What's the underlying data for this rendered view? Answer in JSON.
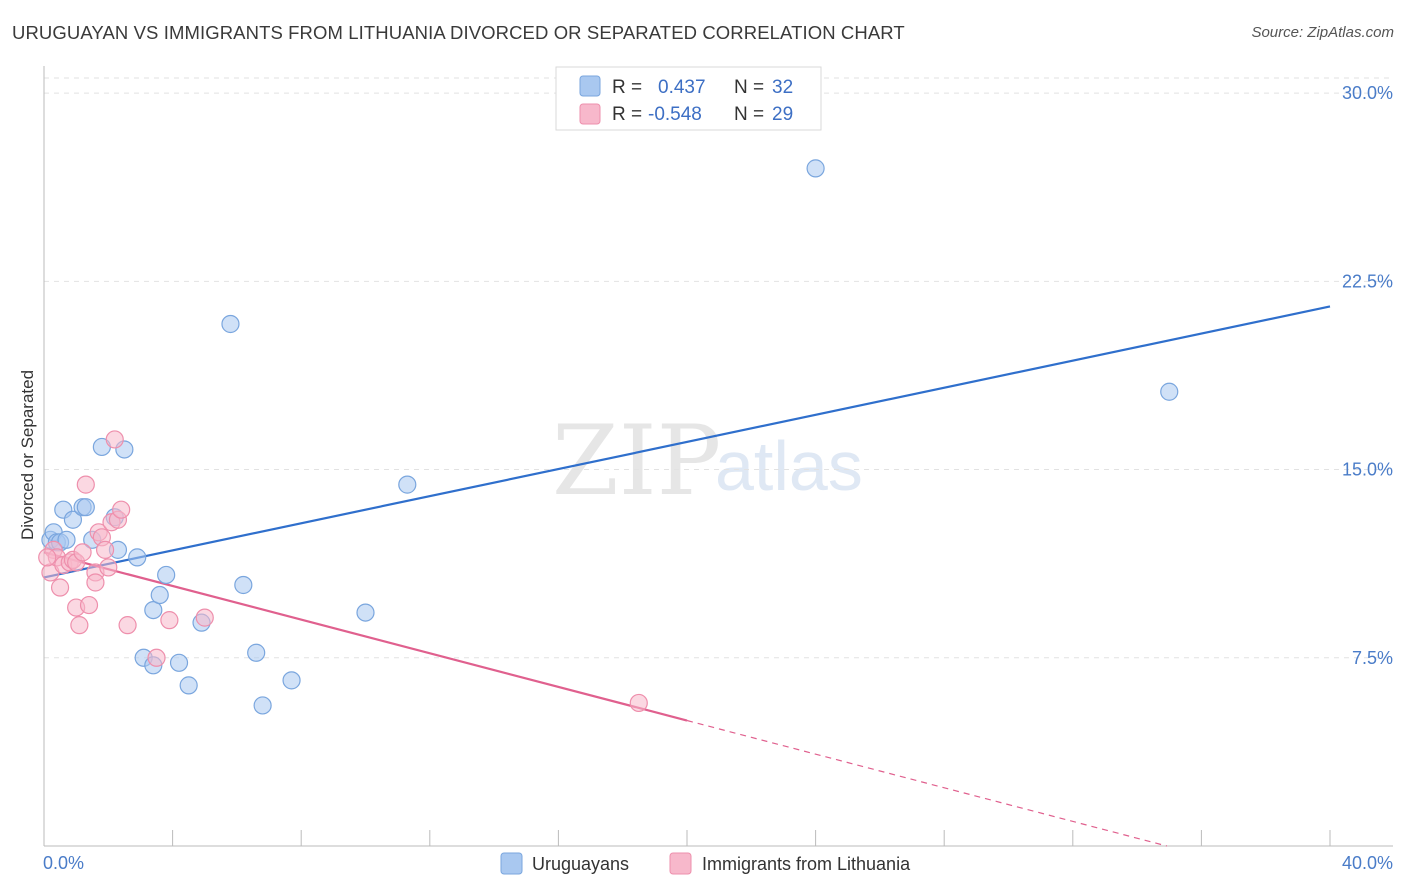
{
  "header": {
    "title": "URUGUAYAN VS IMMIGRANTS FROM LITHUANIA DIVORCED OR SEPARATED CORRELATION CHART",
    "source": "Source: ZipAtlas.com"
  },
  "watermark": {
    "zip": "ZIP",
    "atlas": "atlas"
  },
  "legend": {
    "rows": [
      {
        "r_label": "R =",
        "r_value": "0.437",
        "n_label": "N =",
        "n_value": "32",
        "color": "#a9c8f0"
      },
      {
        "r_label": "R =",
        "r_value": "-0.548",
        "n_label": "N =",
        "n_value": "29",
        "color": "#f7b8cb"
      }
    ]
  },
  "chart_data": {
    "type": "scatter",
    "title": "URUGUAYAN VS IMMIGRANTS FROM LITHUANIA DIVORCED OR SEPARATED CORRELATION CHART",
    "xlabel": "",
    "ylabel": "Divorced or Separated",
    "xlim": [
      0,
      40
    ],
    "ylim": [
      0,
      31
    ],
    "x_tick_labels": [
      "0.0%",
      "40.0%"
    ],
    "y_ticks": [
      7.5,
      15.0,
      22.5,
      30.0
    ],
    "y_tick_labels": [
      "7.5%",
      "15.0%",
      "22.5%",
      "30.0%"
    ],
    "grid": true,
    "series": [
      {
        "name": "Uruguayans",
        "color": "#a9c8f0",
        "stroke": "#7aa6de",
        "trend_color": "#2f6fcc",
        "trend": {
          "x": [
            0,
            40
          ],
          "y": [
            10.7,
            21.5
          ]
        },
        "points": [
          [
            0.2,
            12.2
          ],
          [
            0.3,
            12.5
          ],
          [
            0.4,
            12.1
          ],
          [
            0.5,
            12.1
          ],
          [
            0.6,
            13.4
          ],
          [
            0.7,
            12.2
          ],
          [
            0.9,
            13.0
          ],
          [
            1.2,
            13.5
          ],
          [
            1.3,
            13.5
          ],
          [
            1.5,
            12.2
          ],
          [
            1.8,
            15.9
          ],
          [
            2.2,
            13.1
          ],
          [
            2.3,
            11.8
          ],
          [
            2.5,
            15.8
          ],
          [
            2.9,
            11.5
          ],
          [
            3.1,
            7.5
          ],
          [
            3.4,
            9.4
          ],
          [
            3.6,
            10.0
          ],
          [
            3.4,
            7.2
          ],
          [
            3.8,
            10.8
          ],
          [
            4.2,
            7.3
          ],
          [
            4.5,
            6.4
          ],
          [
            4.9,
            8.9
          ],
          [
            5.8,
            20.8
          ],
          [
            6.2,
            10.4
          ],
          [
            6.6,
            7.7
          ],
          [
            6.8,
            5.6
          ],
          [
            7.7,
            6.6
          ],
          [
            10.0,
            9.3
          ],
          [
            11.3,
            14.4
          ],
          [
            24.0,
            27.0
          ],
          [
            35.0,
            18.1
          ]
        ]
      },
      {
        "name": "Immigrants from Lithuania",
        "color": "#f7b8cb",
        "stroke": "#ee8fac",
        "trend_color": "#e0608e",
        "trend": {
          "x": [
            0,
            20
          ],
          "y": [
            11.7,
            5.0
          ]
        },
        "trend_dashed": {
          "x": [
            20,
            40
          ],
          "y": [
            5.0,
            -1.7
          ]
        },
        "points": [
          [
            0.2,
            10.9
          ],
          [
            0.3,
            11.8
          ],
          [
            0.4,
            11.5
          ],
          [
            0.5,
            10.3
          ],
          [
            0.6,
            11.2
          ],
          [
            0.8,
            11.3
          ],
          [
            0.9,
            11.4
          ],
          [
            1.0,
            11.3
          ],
          [
            1.0,
            9.5
          ],
          [
            1.1,
            8.8
          ],
          [
            1.2,
            11.7
          ],
          [
            1.3,
            14.4
          ],
          [
            1.4,
            9.6
          ],
          [
            1.6,
            10.9
          ],
          [
            1.6,
            10.5
          ],
          [
            1.7,
            12.5
          ],
          [
            1.8,
            12.3
          ],
          [
            1.9,
            11.8
          ],
          [
            2.0,
            11.1
          ],
          [
            2.1,
            12.9
          ],
          [
            2.2,
            16.2
          ],
          [
            2.3,
            13.0
          ],
          [
            2.4,
            13.4
          ],
          [
            2.6,
            8.8
          ],
          [
            3.5,
            7.5
          ],
          [
            3.9,
            9.0
          ],
          [
            5.0,
            9.1
          ],
          [
            18.5,
            5.7
          ],
          [
            0.1,
            11.5
          ]
        ]
      }
    ],
    "legend_position": "bottom-center"
  }
}
